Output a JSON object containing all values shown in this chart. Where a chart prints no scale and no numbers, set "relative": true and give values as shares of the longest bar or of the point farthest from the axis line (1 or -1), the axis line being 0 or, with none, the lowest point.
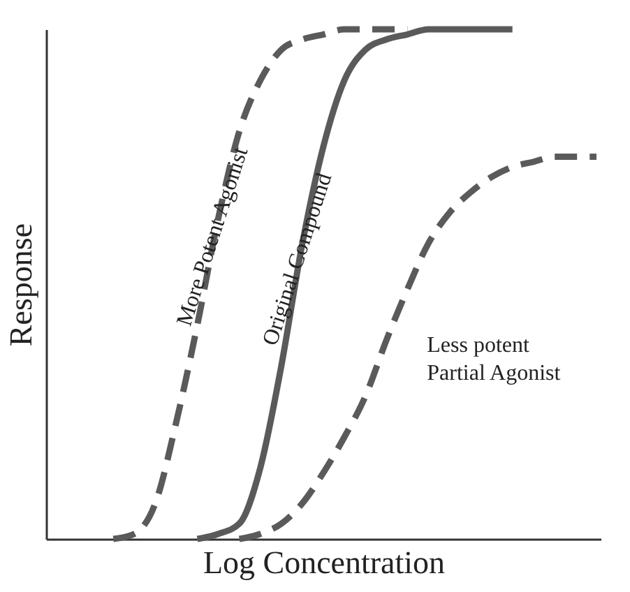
{
  "chart_data": {
    "type": "line",
    "xlabel": "Log Concentration",
    "ylabel": "Response",
    "relative": true,
    "tick_labels": false,
    "grid": false,
    "categories": [
      null,
      null,
      null,
      null,
      null,
      null,
      null,
      null,
      null,
      null,
      null,
      null,
      null,
      null,
      null,
      null,
      null,
      null,
      null,
      null,
      null,
      null,
      null,
      null,
      null,
      null,
      null
    ],
    "series": [
      {
        "name": "More Potent Agonist",
        "color": "#5a5a5a",
        "line_style": "dashed",
        "values": [
          null,
          null,
          null,
          0,
          0.01,
          0.07,
          0.23,
          0.42,
          0.63,
          0.8,
          0.9,
          0.96,
          0.98,
          0.99,
          1,
          1,
          1,
          1,
          null,
          null,
          null,
          null,
          null,
          null,
          null,
          null,
          null
        ]
      },
      {
        "name": "Original Compound",
        "color": "#5a5a5a",
        "line_style": "solid",
        "values": [
          null,
          null,
          null,
          null,
          null,
          null,
          null,
          0,
          0.01,
          0.03,
          0.14,
          0.34,
          0.58,
          0.77,
          0.9,
          0.96,
          0.98,
          0.99,
          1,
          1,
          1,
          1,
          1,
          null,
          null,
          null,
          null
        ]
      },
      {
        "name": "Less potent Partial Agonist",
        "color": "#5a5a5a",
        "line_style": "dashed",
        "values": [
          null,
          null,
          null,
          null,
          null,
          null,
          null,
          null,
          null,
          0,
          0.01,
          0.03,
          0.07,
          0.13,
          0.2,
          0.28,
          0.39,
          0.49,
          0.58,
          0.64,
          0.68,
          0.71,
          0.73,
          0.74,
          0.75,
          0.75,
          0.75
        ]
      }
    ]
  }
}
